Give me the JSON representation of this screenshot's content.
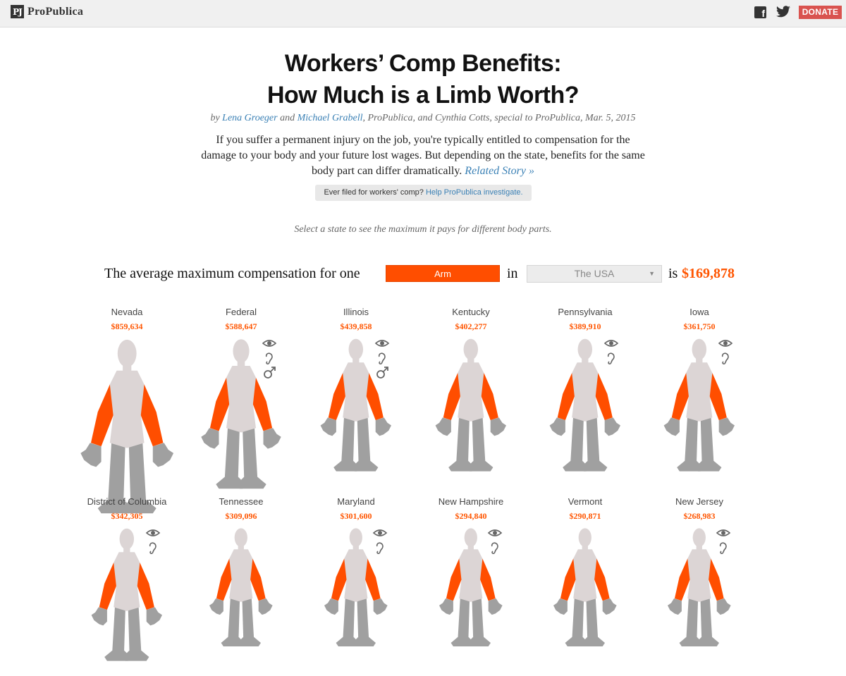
{
  "header": {
    "logo_text": "ProPublica",
    "logo_mark": "PJ",
    "icons": [
      "facebook-icon",
      "twitter-icon"
    ],
    "donate_label": "DONATE"
  },
  "article": {
    "title_line1": "Workers’ Comp Benefits:",
    "title_line2": "How Much is a Limb Worth?",
    "byline_prefix": "by ",
    "author1": "Lena Groeger",
    "byline_and": " and ",
    "author2": "Michael Grabell",
    "byline_suffix": ", ProPublica, and Cynthia Cotts, special to ProPublica, Mar. 5, 2015",
    "intro": "If you suffer a permanent injury on the job, you're typically entitled to compensation for the damage to your body and your future lost wages. But depending on the state, benefits for the same body part can differ dramatically.",
    "related_story": "Related Story »",
    "filed_text": "Ever filed for workers' comp?",
    "filed_link": "Help ProPublica investigate.",
    "select_hint": "Select a state to see the maximum it pays for different body parts."
  },
  "controls": {
    "sentence_start": "The average maximum compensation for one",
    "body_part": "Arm",
    "in_word": "in",
    "state": "The USA",
    "is_word": "is",
    "total": "$169,878"
  },
  "colors": {
    "accent": "#ff5500",
    "limb_highlight": "#ff4e00",
    "limb_gray": "#a0a0a0",
    "torso": "#dcd5d5",
    "link": "#3a80b5",
    "donate": "#d9534f"
  },
  "states": [
    {
      "name": "Nevada",
      "value": "$859,634",
      "icons": []
    },
    {
      "name": "Federal",
      "value": "$588,647",
      "icons": [
        "eye-icon",
        "ear-icon",
        "male-symbol-icon"
      ]
    },
    {
      "name": "Illinois",
      "value": "$439,858",
      "icons": [
        "eye-icon",
        "ear-icon",
        "male-symbol-icon"
      ]
    },
    {
      "name": "Kentucky",
      "value": "$402,277",
      "icons": []
    },
    {
      "name": "Pennsylvania",
      "value": "$389,910",
      "icons": [
        "eye-icon",
        "ear-icon"
      ]
    },
    {
      "name": "Iowa",
      "value": "$361,750",
      "icons": [
        "eye-icon",
        "ear-icon"
      ]
    },
    {
      "name": "District of Columbia",
      "value": "$342,305",
      "icons": [
        "eye-icon",
        "ear-icon"
      ]
    },
    {
      "name": "Tennessee",
      "value": "$309,096",
      "icons": []
    },
    {
      "name": "Maryland",
      "value": "$301,600",
      "icons": [
        "eye-icon",
        "ear-icon"
      ]
    },
    {
      "name": "New Hampshire",
      "value": "$294,840",
      "icons": [
        "eye-icon",
        "ear-icon"
      ]
    },
    {
      "name": "Vermont",
      "value": "$290,871",
      "icons": []
    },
    {
      "name": "New Jersey",
      "value": "$268,983",
      "icons": [
        "eye-icon",
        "ear-icon"
      ]
    }
  ]
}
